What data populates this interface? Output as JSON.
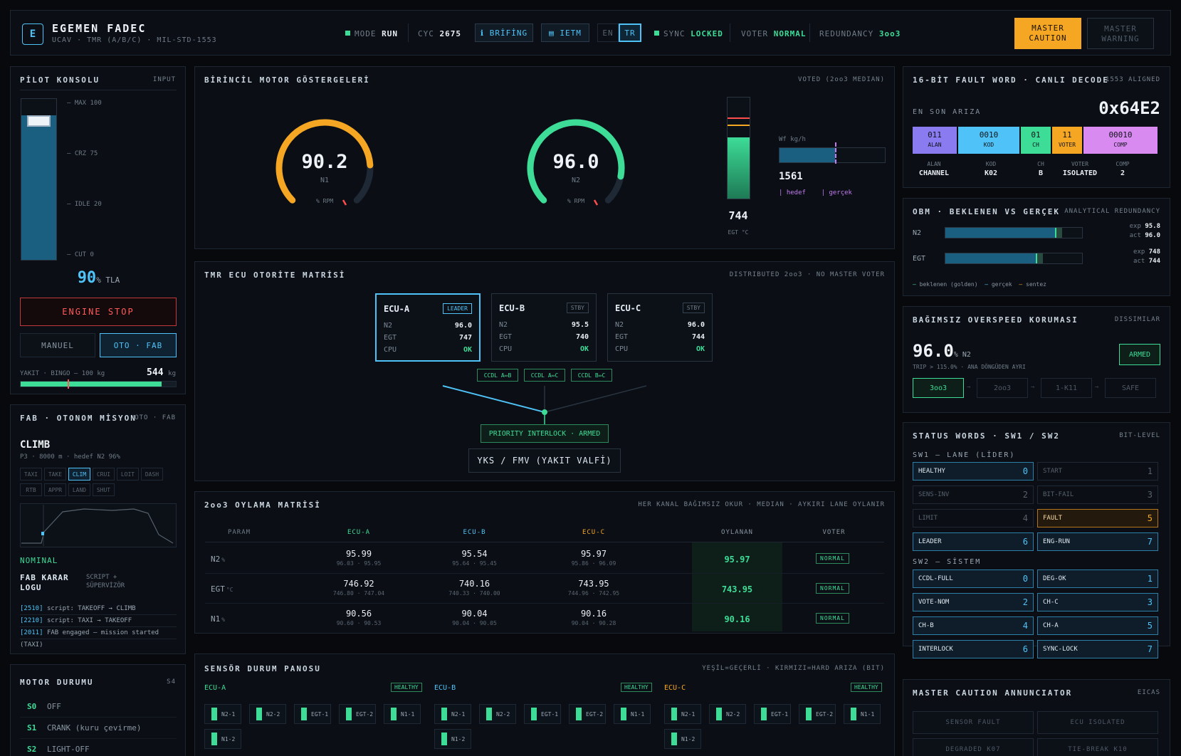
{
  "header": {
    "logo_letter": "E",
    "title": "EGEMEN FADEC",
    "subtitle": "UCAV · TMR (A/B/C) · MIL-STD-1553",
    "mode_label": "MODE",
    "mode_value": "RUN",
    "cyc_label": "CYC",
    "cyc_value": "2675",
    "brifing_label": "ℹ BRİFİNG",
    "ietm_label": "▤ IETM",
    "lang_en": "EN",
    "lang_tr": "TR",
    "sync_label": "SYNC",
    "sync_value": "LOCKED",
    "voter_label": "VOTER",
    "voter_value": "NORMAL",
    "redundancy_label": "REDUNDANCY",
    "redundancy_value": "3oo3",
    "master_caution_1": "MASTER",
    "master_caution_2": "CAUTION",
    "master_warning_1": "MASTER",
    "master_warning_2": "WARNING"
  },
  "pilot": {
    "title": "PİLOT KONSOLU",
    "tag": "INPUT",
    "ticks": [
      "— MAX 100",
      "— CRZ 75",
      "— IDLE 20",
      "— CUT 0"
    ],
    "tla_value": "90",
    "tla_unit": "% TLA",
    "tla_fraction": 0.9,
    "engine_stop": "ENGINE STOP",
    "manual": "MANUEL",
    "auto": "OTO · FAB",
    "fuel_label": "YAKIT · BINGO — 100 kg",
    "fuel_value": "544",
    "fuel_unit": "kg"
  },
  "fab": {
    "title": "FAB · OTONOM MİSYON",
    "tag": "OTO · FAB",
    "phase": "CLIMB",
    "phase_sub": "P3 · 8000 m · hedef N2 96%",
    "phases_row1": [
      "TAXI",
      "TAKE",
      "CLIM",
      "CRUI",
      "LOIT",
      "DASH"
    ],
    "phases_row2": [
      "RTB",
      "APPR",
      "LAND",
      "SHUT"
    ],
    "status": "NOMINAL",
    "decision_title_1": "FAB KARAR",
    "decision_title_2": "LOGU",
    "decision_side_1": "SCRIPT +",
    "decision_side_2": "SÜPERVİZÖR",
    "log": [
      {
        "t": "[2510]",
        "m": "script: TAKEOFF → CLIMB"
      },
      {
        "t": "[2210]",
        "m": "script: TAXI → TAKEOFF"
      },
      {
        "t": "[2011]",
        "m": "FAB engaged — mission started"
      },
      {
        "t": "",
        "m": "(TAXI)"
      }
    ]
  },
  "motor_state": {
    "title": "MOTOR DURUMU",
    "tag": "S4",
    "states": [
      {
        "code": "S0",
        "label": "OFF"
      },
      {
        "code": "S1",
        "label": "CRANK (kuru çevirme)"
      },
      {
        "code": "S2",
        "label": "LIGHT-OFF"
      }
    ]
  },
  "primary": {
    "title": "BİRİNCİL MOTOR GÖSTERGELERİ",
    "tag": "VOTED (2oo3 MEDIAN)",
    "n1_value": "90.2",
    "n1_label": "N1",
    "n1_unit": "% RPM",
    "n2_value": "96.0",
    "n2_label": "N2",
    "n2_unit": "% RPM",
    "egt_value": "744",
    "egt_unit": "EGT °C",
    "wf_label": "Wf kg/h",
    "wf_value": "1561",
    "wf_legend_target": "hedef",
    "wf_legend_actual": "gerçek"
  },
  "tmr": {
    "title": "TMR ECU OTORİTE MATRİSİ",
    "tag": "DISTRIBUTED 2oo3 · NO MASTER VOTER",
    "ecus": [
      {
        "name": "ECU-A",
        "tag": "LEADER",
        "n2": "96.0",
        "egt": "747",
        "cpu": "OK"
      },
      {
        "name": "ECU-B",
        "tag": "STBY",
        "n2": "95.5",
        "egt": "740",
        "cpu": "OK"
      },
      {
        "name": "ECU-C",
        "tag": "STBY",
        "n2": "96.0",
        "egt": "744",
        "cpu": "OK"
      }
    ],
    "row_labels": [
      "N2",
      "EGT",
      "CPU"
    ],
    "ccdl": [
      "CCDL A⇔B",
      "CCDL A⇔C",
      "CCDL B⇔C"
    ],
    "interlock": "PRIORITY INTERLOCK · ARMED",
    "valve": "YKS / FMV (YAKIT VALFİ)"
  },
  "vote": {
    "title": "2oo3 OYLAMA MATRİSİ",
    "tag": "HER KANAL BAĞIMSIZ OKUR · MEDIAN · AYKIRI LANE OYLANIR",
    "headers": [
      "PARAM",
      "ECU-A",
      "ECU-B",
      "ECU-C",
      "OYLANAN",
      "VOTER"
    ],
    "rows": [
      {
        "param": "N2",
        "unit": "%",
        "a": "95.99",
        "a_r": "96.03 · 95.95",
        "b": "95.54",
        "b_r": "95.64 · 95.45",
        "c": "95.97",
        "c_r": "95.86 · 96.09",
        "voted": "95.97",
        "voter": "NORMAL"
      },
      {
        "param": "EGT",
        "unit": "°C",
        "a": "746.92",
        "a_r": "746.80 · 747.04",
        "b": "740.16",
        "b_r": "740.33 · 740.00",
        "c": "743.95",
        "c_r": "744.96 · 742.95",
        "voted": "743.95",
        "voter": "NORMAL"
      },
      {
        "param": "N1",
        "unit": "%",
        "a": "90.56",
        "a_r": "90.60 · 90.53",
        "b": "90.04",
        "b_r": "90.04 · 90.05",
        "c": "90.16",
        "c_r": "90.04 · 90.28",
        "voted": "90.16",
        "voter": "NORMAL"
      }
    ]
  },
  "sensors": {
    "title": "SENSÖR DURUM PANOSU",
    "tag": "YEŞİL=GEÇERLİ · KIRMIZI=HARD ARIZA (BIT)",
    "groups": [
      {
        "name": "ECU-A",
        "status": "HEALTHY",
        "chips": [
          "N2-1",
          "N2-2",
          "EGT-1",
          "EGT-2",
          "N1-1",
          "N1-2"
        ]
      },
      {
        "name": "ECU-B",
        "status": "HEALTHY",
        "chips": [
          "N2-1",
          "N2-2",
          "EGT-1",
          "EGT-2",
          "N1-1",
          "N1-2"
        ]
      },
      {
        "name": "ECU-C",
        "status": "HEALTHY",
        "chips": [
          "N2-1",
          "N2-2",
          "EGT-1",
          "EGT-2",
          "N1-1",
          "N1-2"
        ]
      }
    ]
  },
  "fault": {
    "title": "16-BİT FAULT WORD · CANLI DECODE",
    "tag": "1553 ALIGNED",
    "last_label": "EN SON ARIZA",
    "hex": "0x64E2",
    "fields": [
      {
        "bits": "011",
        "name": "ALAN",
        "color": "#8a7cf0"
      },
      {
        "bits": "0010",
        "name": "KOD",
        "color": "#4fc3f7"
      },
      {
        "bits": "01",
        "name": "CH",
        "color": "#3ddc97"
      },
      {
        "bits": "11",
        "name": "VOTER",
        "color": "#f5a623"
      },
      {
        "bits": "00010",
        "name": "COMP",
        "color": "#d98af0"
      }
    ],
    "decoded": [
      {
        "k": "ALAN",
        "v": "CHANNEL"
      },
      {
        "k": "KOD",
        "v": "K02"
      },
      {
        "k": "CH",
        "v": "B"
      },
      {
        "k": "VOTER",
        "v": "ISOLATED"
      },
      {
        "k": "COMP",
        "v": "2"
      }
    ]
  },
  "obm": {
    "title": "OBM · BEKLENEN VS GERÇEK",
    "tag": "ANALYTICAL REDUNDANCY",
    "rows": [
      {
        "label": "N2",
        "exp_label": "exp",
        "exp": "95.8",
        "act_label": "act",
        "act": "96.0",
        "fraction": 0.8
      },
      {
        "label": "EGT",
        "exp_label": "exp",
        "exp": "748",
        "act_label": "act",
        "act": "744",
        "fraction": 0.66
      }
    ],
    "legend": [
      "beklenen (golden)",
      "gerçek",
      "sentez"
    ]
  },
  "overspeed": {
    "title": "BAĞIMSIZ OVERSPEED KORUMASI",
    "tag": "DISSIMILAR",
    "value": "96.0",
    "unit": "% N2",
    "trip": "TRIP > 115.0% · ANA DÖNGÜDEN AYRI",
    "armed": "ARMED",
    "steps": [
      "3oo3",
      "2oo3",
      "1-K11",
      "SAFE"
    ]
  },
  "status_words": {
    "title": "STATUS WORDS · SW1 / SW2",
    "tag": "BIT-LEVEL",
    "sw1_title": "SW1 — LANE (LİDER)",
    "sw1": [
      {
        "n": "HEALTHY",
        "b": "0",
        "s": "on"
      },
      {
        "n": "START",
        "b": "1",
        "s": "off"
      },
      {
        "n": "SENS-INV",
        "b": "2",
        "s": "off"
      },
      {
        "n": "BIT-FAIL",
        "b": "3",
        "s": "off"
      },
      {
        "n": "LIMIT",
        "b": "4",
        "s": "off"
      },
      {
        "n": "FAULT",
        "b": "5",
        "s": "flt"
      },
      {
        "n": "LEADER",
        "b": "6",
        "s": "on"
      },
      {
        "n": "ENG-RUN",
        "b": "7",
        "s": "on"
      }
    ],
    "sw2_title": "SW2 — SİSTEM",
    "sw2": [
      {
        "n": "CCDL-FULL",
        "b": "0",
        "s": "on"
      },
      {
        "n": "DEG-OK",
        "b": "1",
        "s": "on"
      },
      {
        "n": "VOTE-NOM",
        "b": "2",
        "s": "on"
      },
      {
        "n": "CH-C",
        "b": "3",
        "s": "on"
      },
      {
        "n": "CH-B",
        "b": "4",
        "s": "on"
      },
      {
        "n": "CH-A",
        "b": "5",
        "s": "on"
      },
      {
        "n": "INTERLOCK",
        "b": "6",
        "s": "on"
      },
      {
        "n": "SYNC-LOCK",
        "b": "7",
        "s": "on"
      }
    ]
  },
  "annunciator": {
    "title": "MASTER CAUTION ANNUNCIATOR",
    "tag": "EICAS",
    "items": [
      "SENSOR FAULT",
      "ECU ISOLATED",
      "DEGRADED K07",
      "TIE-BREAK K10"
    ]
  }
}
